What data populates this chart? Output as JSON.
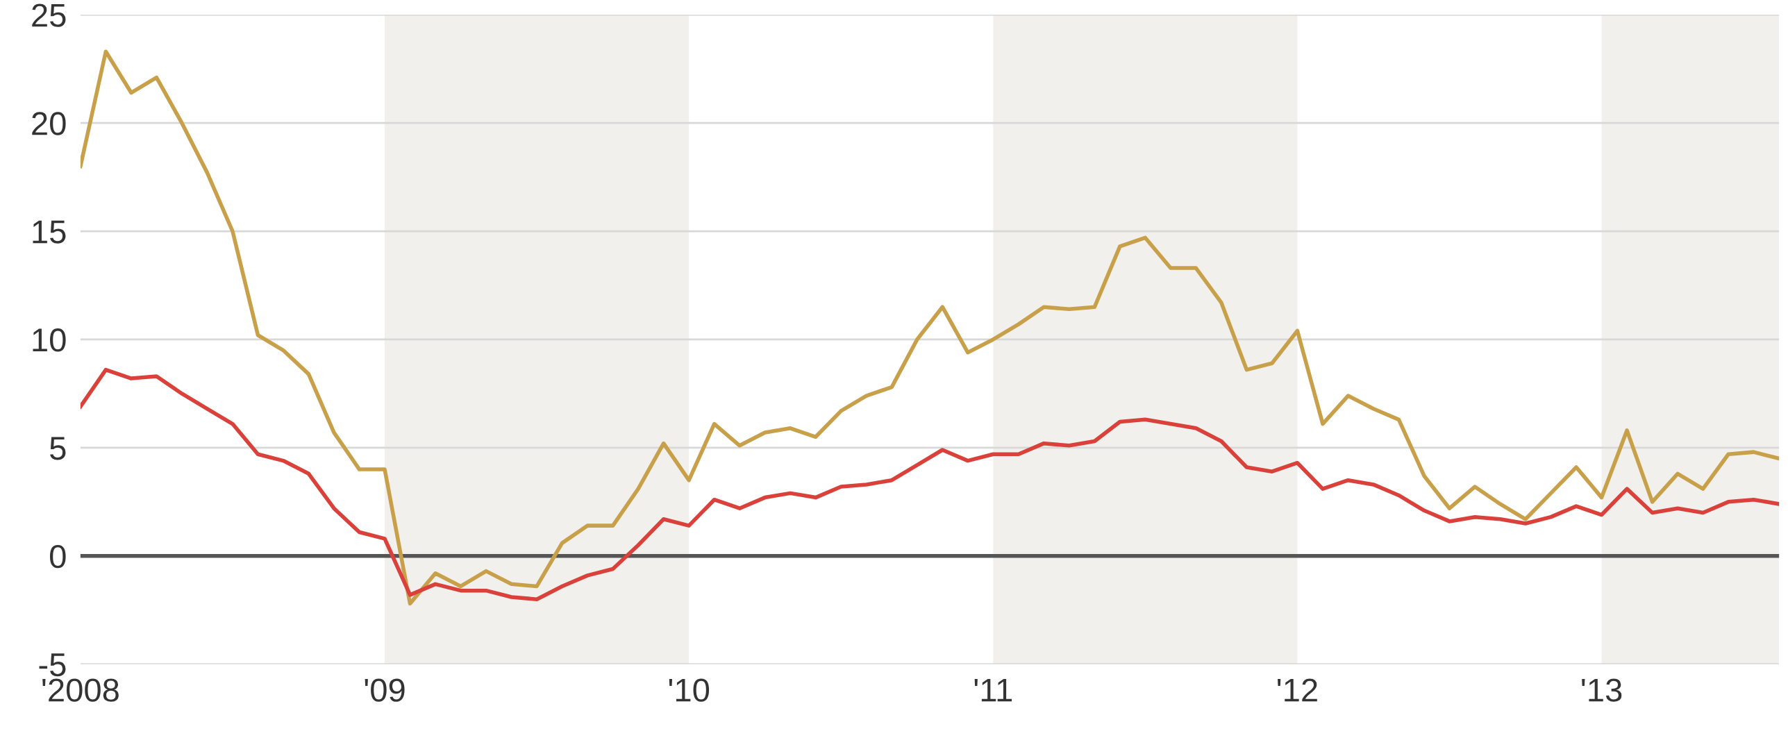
{
  "chart_data": {
    "type": "line",
    "x": [
      "2008-01",
      "2008-02",
      "2008-03",
      "2008-04",
      "2008-05",
      "2008-06",
      "2008-07",
      "2008-08",
      "2008-09",
      "2008-10",
      "2008-11",
      "2008-12",
      "2009-01",
      "2009-02",
      "2009-03",
      "2009-04",
      "2009-05",
      "2009-06",
      "2009-07",
      "2009-08",
      "2009-09",
      "2009-10",
      "2009-11",
      "2009-12",
      "2010-01",
      "2010-02",
      "2010-03",
      "2010-04",
      "2010-05",
      "2010-06",
      "2010-07",
      "2010-08",
      "2010-09",
      "2010-10",
      "2010-11",
      "2010-12",
      "2011-01",
      "2011-02",
      "2011-03",
      "2011-04",
      "2011-05",
      "2011-06",
      "2011-07",
      "2011-08",
      "2011-09",
      "2011-10",
      "2011-11",
      "2011-12",
      "2012-01",
      "2012-02",
      "2012-03",
      "2012-04",
      "2012-05",
      "2012-06",
      "2012-07",
      "2012-08",
      "2012-09",
      "2012-10",
      "2012-11",
      "2012-12",
      "2013-01",
      "2013-02",
      "2013-03",
      "2013-04",
      "2013-05",
      "2013-06",
      "2013-07",
      "2013-08"
    ],
    "series": [
      {
        "color": "#c9a04a",
        "values": [
          18.0,
          23.3,
          21.4,
          22.1,
          20.0,
          17.7,
          15.0,
          10.2,
          9.5,
          8.4,
          5.7,
          4.0,
          4.0,
          -2.2,
          -0.8,
          -1.4,
          -0.7,
          -1.3,
          -1.4,
          0.6,
          1.4,
          1.4,
          3.1,
          5.2,
          3.5,
          6.1,
          5.1,
          5.7,
          5.9,
          5.5,
          6.7,
          7.4,
          7.8,
          10.0,
          11.5,
          9.4,
          10.0,
          10.7,
          11.5,
          11.4,
          11.5,
          14.3,
          14.7,
          13.3,
          13.3,
          11.7,
          8.6,
          8.9,
          10.4,
          6.1,
          7.4,
          6.8,
          6.3,
          3.7,
          2.2,
          3.2,
          2.4,
          1.7,
          2.9,
          4.1,
          2.7,
          5.8,
          2.5,
          3.8,
          3.1,
          4.7,
          4.8,
          4.5
        ]
      },
      {
        "color": "#d9413a",
        "values": [
          6.9,
          8.6,
          8.2,
          8.3,
          7.5,
          6.8,
          6.1,
          4.7,
          4.4,
          3.8,
          2.2,
          1.1,
          0.8,
          -1.8,
          -1.3,
          -1.6,
          -1.6,
          -1.9,
          -2.0,
          -1.4,
          -0.9,
          -0.6,
          0.5,
          1.7,
          1.4,
          2.6,
          2.2,
          2.7,
          2.9,
          2.7,
          3.2,
          3.3,
          3.5,
          4.2,
          4.9,
          4.4,
          4.7,
          4.7,
          5.2,
          5.1,
          5.3,
          6.2,
          6.3,
          6.1,
          5.9,
          5.3,
          4.1,
          3.9,
          4.3,
          3.1,
          3.5,
          3.3,
          2.8,
          2.1,
          1.6,
          1.8,
          1.7,
          1.5,
          1.8,
          2.3,
          1.9,
          3.1,
          2.0,
          2.2,
          2.0,
          2.5,
          2.6,
          2.4
        ]
      }
    ],
    "xlim": [
      "2008-01",
      "2013-08"
    ],
    "xticks": [
      {
        "value": "2008-01",
        "label": "'2008"
      },
      {
        "value": "2009-01",
        "label": "'09"
      },
      {
        "value": "2010-01",
        "label": "'10"
      },
      {
        "value": "2011-01",
        "label": "'11"
      },
      {
        "value": "2012-01",
        "label": "'12"
      },
      {
        "value": "2013-01",
        "label": "'13"
      }
    ],
    "ylim": [
      -5,
      25
    ],
    "yticks": [
      -5,
      0,
      5,
      10,
      15,
      20,
      25
    ],
    "grid": "y",
    "marker": "none",
    "line_style": "solid",
    "ref_lines": [
      {
        "axis": "y",
        "value": 0,
        "color": "#555555"
      }
    ],
    "bands": [
      {
        "axis": "x",
        "from": "2009-01",
        "to": "2010-01",
        "color": "#f1f0ec"
      },
      {
        "axis": "x",
        "from": "2011-01",
        "to": "2012-01",
        "color": "#f1f0ec"
      },
      {
        "axis": "x",
        "from": "2013-01",
        "to": "2013-08",
        "color": "#f1f0ec"
      }
    ]
  }
}
